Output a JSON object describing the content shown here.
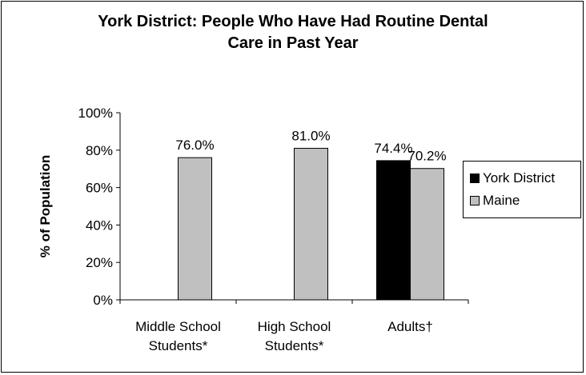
{
  "chart_data": {
    "type": "bar",
    "title_lines": [
      "York District: People Who Have Had Routine Dental",
      "Care in Past Year"
    ],
    "ylabel": "% of Population",
    "xlabel": "",
    "ylim": [
      0,
      100
    ],
    "y_ticks": [
      "0%",
      "20%",
      "40%",
      "60%",
      "80%",
      "100%"
    ],
    "categories": [
      [
        "Middle School",
        "Students*"
      ],
      [
        "High School",
        "Students*"
      ],
      [
        "Adults†"
      ]
    ],
    "series": [
      {
        "name": "York District",
        "color": "#000000",
        "values": [
          null,
          null,
          74.4
        ],
        "labels": [
          "",
          "",
          "74.4%"
        ]
      },
      {
        "name": "Maine",
        "color": "#c0c0c0",
        "values": [
          76.0,
          81.0,
          70.2
        ],
        "labels": [
          "76.0%",
          "81.0%",
          "70.2%"
        ]
      }
    ],
    "legend_position": "right",
    "grid": false
  }
}
